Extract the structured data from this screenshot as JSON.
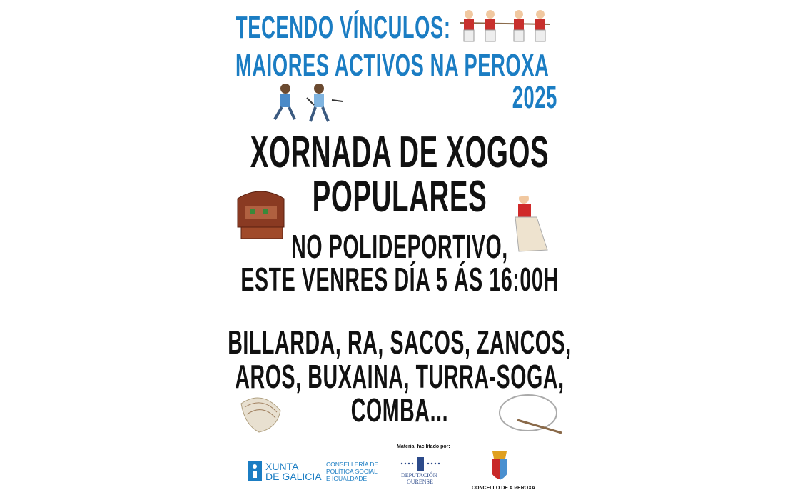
{
  "header": {
    "title_line1": "TECENDO VÍNCULOS:",
    "title_line2": "MAIORES ACTIVOS NA PEROXA",
    "year": "2025"
  },
  "event": {
    "title_line1": "XORNADA DE XOGOS",
    "title_line2": "POPULARES",
    "place": "NO POLIDEPORTIVO,",
    "date": "ESTE VENRES DÍA 5 ÁS 16:00H"
  },
  "games": {
    "line1": "BILLARDA, RA, SACOS, ZANCOS,",
    "line2": "AROS, BUXAINA, TURRA-SOGA,",
    "line3": "COMBA..."
  },
  "footer": {
    "xunta_line1": "XUNTA",
    "xunta_line2": "DE GALICIA",
    "conselleria_line1": "CONSELLERÍA DE",
    "conselleria_line2": "POLÍTICA SOCIAL",
    "conselleria_line3": "E IGUALDADE",
    "material_label": "Material facilitado por:",
    "deputacion_line1": "DEPUTACIÓN",
    "deputacion_line2": "OURENSE",
    "concello": "CONCELLO DE A PEROXA"
  },
  "colors": {
    "title_blue": "#1b7dc3",
    "text": "#111111",
    "xunta_blue": "#1b7dc3",
    "deputacion_blue": "#2c4a8a"
  }
}
